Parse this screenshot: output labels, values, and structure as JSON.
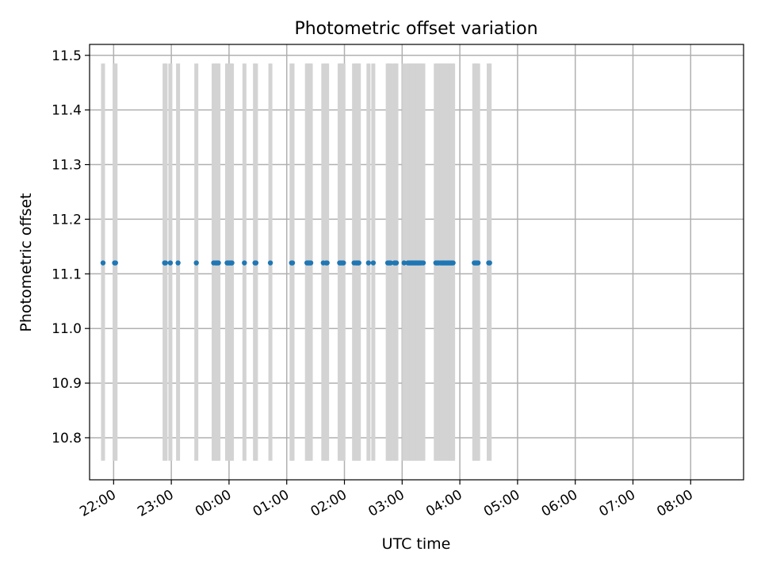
{
  "chart_data": {
    "type": "scatter",
    "title": "Photometric offset variation",
    "xlabel": "UTC time",
    "ylabel": "Photometric offset",
    "xlim": [
      "21:35",
      "08:55"
    ],
    "ylim": [
      10.723,
      11.52
    ],
    "grid": true,
    "x_ticks": [
      "22:00",
      "23:00",
      "00:00",
      "01:00",
      "02:00",
      "03:00",
      "04:00",
      "05:00",
      "06:00",
      "07:00",
      "08:00"
    ],
    "y_ticks": [
      "10.8",
      "10.9",
      "11.0",
      "11.1",
      "11.2",
      "11.3",
      "11.4",
      "11.5"
    ],
    "band_range": [
      10.758,
      11.485
    ],
    "x": [
      "21:49",
      "22:01",
      "22:02",
      "22:53",
      "22:54",
      "22:59",
      "23:07",
      "23:26",
      "23:44",
      "23:46",
      "23:47",
      "23:48",
      "23:49",
      "23:58",
      "23:59",
      "00:00",
      "00:01",
      "00:02",
      "00:03",
      "00:16",
      "00:27",
      "00:28",
      "00:43",
      "01:05",
      "01:06",
      "01:21",
      "01:22",
      "01:23",
      "01:24",
      "01:25",
      "01:38",
      "01:41",
      "01:42",
      "01:55",
      "01:56",
      "01:57",
      "01:58",
      "01:59",
      "02:10",
      "02:12",
      "02:13",
      "02:14",
      "02:15",
      "02:25",
      "02:30",
      "02:45",
      "02:46",
      "02:47",
      "02:48",
      "02:52",
      "02:53",
      "02:54",
      "03:02",
      "03:06",
      "03:07",
      "03:08",
      "03:09",
      "03:10",
      "03:11",
      "03:12",
      "03:13",
      "03:14",
      "03:15",
      "03:16",
      "03:17",
      "03:18",
      "03:19",
      "03:20",
      "03:22",
      "03:35",
      "03:36",
      "03:37",
      "03:38",
      "03:40",
      "03:41",
      "03:42",
      "03:43",
      "03:44",
      "03:45",
      "03:46",
      "03:47",
      "03:48",
      "03:49",
      "03:50",
      "03:51",
      "03:52",
      "03:53",
      "04:15",
      "04:16",
      "04:17",
      "04:18",
      "04:19",
      "04:30",
      "04:31"
    ],
    "values": [
      11.12,
      11.12,
      11.12,
      11.12,
      11.12,
      11.12,
      11.12,
      11.12,
      11.12,
      11.12,
      11.12,
      11.12,
      11.12,
      11.12,
      11.12,
      11.12,
      11.12,
      11.12,
      11.12,
      11.12,
      11.12,
      11.12,
      11.12,
      11.12,
      11.12,
      11.12,
      11.12,
      11.12,
      11.12,
      11.12,
      11.12,
      11.12,
      11.12,
      11.12,
      11.12,
      11.12,
      11.12,
      11.12,
      11.12,
      11.12,
      11.12,
      11.12,
      11.12,
      11.12,
      11.12,
      11.12,
      11.12,
      11.12,
      11.12,
      11.12,
      11.12,
      11.12,
      11.12,
      11.12,
      11.12,
      11.12,
      11.12,
      11.12,
      11.12,
      11.12,
      11.12,
      11.12,
      11.12,
      11.12,
      11.12,
      11.12,
      11.12,
      11.12,
      11.12,
      11.12,
      11.12,
      11.12,
      11.12,
      11.12,
      11.12,
      11.12,
      11.12,
      11.12,
      11.12,
      11.12,
      11.12,
      11.12,
      11.12,
      11.12,
      11.12,
      11.12,
      11.12,
      11.12,
      11.12,
      11.12,
      11.12,
      11.12,
      11.12,
      11.12
    ]
  }
}
